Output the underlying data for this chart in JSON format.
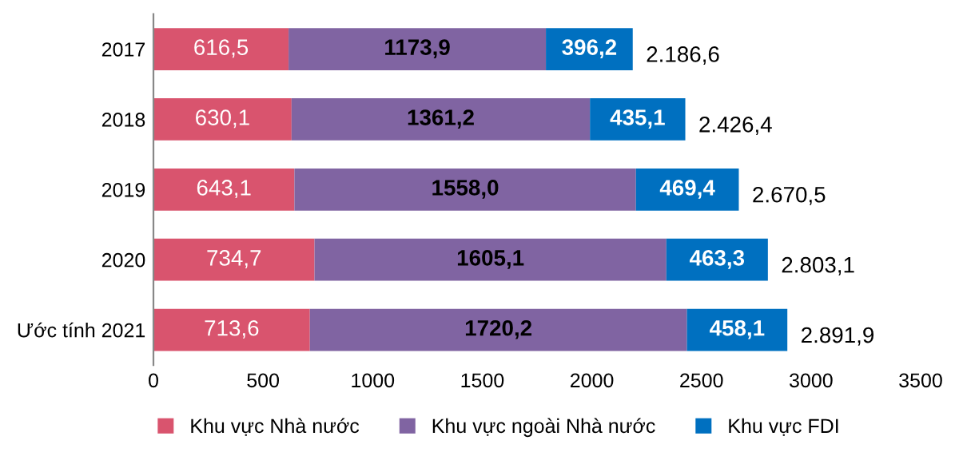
{
  "chart_data": {
    "type": "bar",
    "orientation": "horizontal",
    "stacked": true,
    "categories": [
      "2017",
      "2018",
      "2019",
      "2020",
      "Ước tính 2021"
    ],
    "series": [
      {
        "name": "Khu vực Nhà nước",
        "color": "#d9546e",
        "values": [
          616.5,
          630.1,
          643.1,
          734.7,
          713.6
        ],
        "value_labels": [
          "616,5",
          "630,1",
          "643,1",
          "734,7",
          "713,6"
        ]
      },
      {
        "name": "Khu vực ngoài Nhà nước",
        "color": "#8064a2",
        "values": [
          1173.9,
          1361.2,
          1558.0,
          1605.1,
          1720.2
        ],
        "value_labels": [
          "1173,9",
          "1361,2",
          "1558,0",
          "1605,1",
          "1720,2"
        ]
      },
      {
        "name": "Khu vực FDI",
        "color": "#0070c0",
        "values": [
          396.2,
          435.1,
          469.4,
          463.3,
          458.1
        ],
        "value_labels": [
          "396,2",
          "435,1",
          "469,4",
          "463,3",
          "458,1"
        ]
      }
    ],
    "totals": [
      "2.186,6",
      "2.426,4",
      "2.670,5",
      "2.803,1",
      "2.891,9"
    ],
    "xlim": [
      0,
      3500
    ],
    "xticks": [
      0,
      500,
      1000,
      1500,
      2000,
      2500,
      3000,
      3500
    ],
    "grid": false,
    "legend": "bottom"
  }
}
